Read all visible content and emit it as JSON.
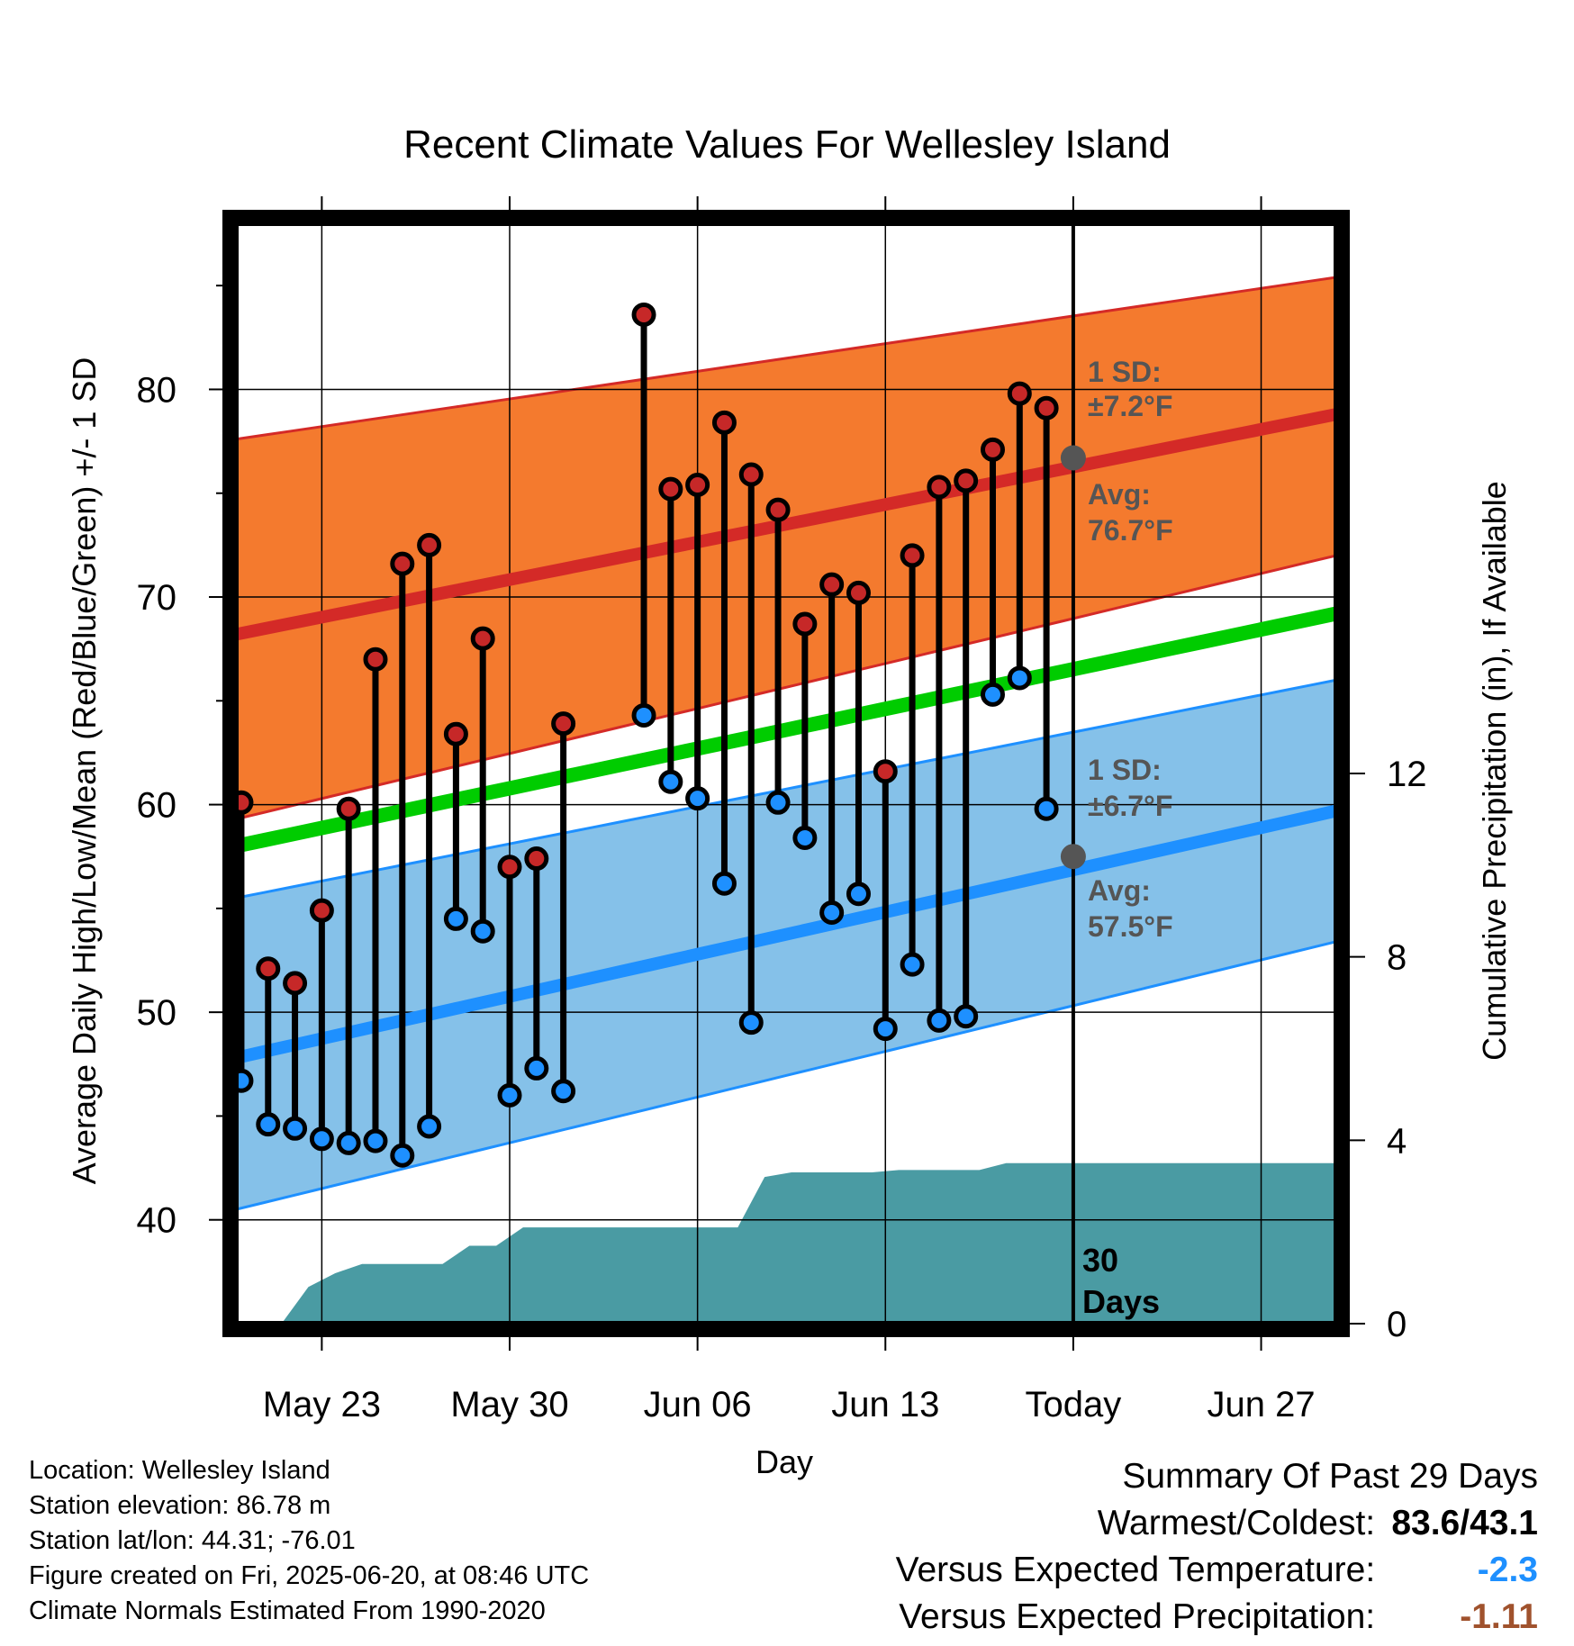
{
  "chart_data": {
    "type": "line",
    "title": "Recent Climate Values For Wellesley Island",
    "xlabel": "Day",
    "ylabel": "Average Daily High/Low/Mean (Red/Blue/Green) +/- 1 SD",
    "y2label": "Cumulative Precipitation (in), If Available",
    "ylim": [
      35,
      88
    ],
    "y2lim": [
      0,
      24
    ],
    "yticks": [
      40,
      50,
      60,
      70,
      80
    ],
    "y2ticks": [
      0,
      4,
      8,
      12
    ],
    "xticks": [
      {
        "day": 2,
        "label": "May 23"
      },
      {
        "day": 9,
        "label": "May 30"
      },
      {
        "day": 16,
        "label": "Jun 06"
      },
      {
        "day": 23,
        "label": "Jun 13"
      },
      {
        "day": 30,
        "label": "Today"
      },
      {
        "day": 37,
        "label": "Jun 27"
      }
    ],
    "xlim": [
      -1.2,
      39.8
    ],
    "today_index": 30,
    "grid": true,
    "normals": {
      "high_avg": [
        68.2,
        78.8
      ],
      "high_upper": [
        77.6,
        85.4
      ],
      "high_lower": [
        59.3,
        72.0
      ],
      "mean_avg": [
        58.0,
        69.2
      ],
      "low_avg": [
        47.8,
        59.7
      ],
      "low_upper": [
        55.5,
        66.0
      ],
      "low_lower": [
        40.5,
        53.4
      ]
    },
    "daily": {
      "x": [
        -1,
        0,
        1,
        2,
        3,
        4,
        5,
        6,
        7,
        8,
        9,
        10,
        11,
        12,
        14,
        15,
        16,
        17,
        18,
        19,
        20,
        21,
        22,
        23,
        24,
        25,
        26,
        27,
        28,
        29
      ],
      "high": [
        60.1,
        52.1,
        51.4,
        54.9,
        59.8,
        67.0,
        71.6,
        72.5,
        63.4,
        68.0,
        57.0,
        57.4,
        63.9,
        null,
        83.6,
        75.2,
        75.4,
        78.4,
        75.9,
        74.2,
        68.7,
        70.6,
        70.2,
        61.6,
        72.0,
        75.3,
        75.6,
        77.1,
        79.8,
        79.1
      ],
      "low": [
        46.7,
        44.6,
        44.4,
        43.9,
        43.7,
        43.8,
        43.1,
        44.5,
        54.5,
        53.9,
        46.0,
        47.3,
        46.2,
        null,
        64.3,
        61.1,
        60.3,
        56.2,
        49.5,
        60.1,
        58.4,
        54.8,
        55.7,
        49.2,
        52.3,
        49.6,
        49.8,
        65.3,
        66.1,
        59.8
      ]
    },
    "precip": {
      "x": [
        -1,
        0,
        1,
        2,
        3,
        4,
        5,
        6,
        7,
        8,
        9,
        10,
        11,
        12,
        13,
        14,
        15,
        16,
        17,
        18,
        19,
        20,
        21,
        22,
        23,
        24,
        25,
        26,
        27,
        28,
        29,
        30,
        31,
        32,
        33,
        34,
        35,
        36,
        37,
        38,
        39
      ],
      "y": [
        0,
        0,
        0,
        0.8,
        1.1,
        1.3,
        1.3,
        1.3,
        1.3,
        1.7,
        1.7,
        2.1,
        2.1,
        2.1,
        2.1,
        2.1,
        2.1,
        2.1,
        2.1,
        2.1,
        3.2,
        3.3,
        3.3,
        3.3,
        3.3,
        3.35,
        3.35,
        3.35,
        3.35,
        3.5,
        3.5,
        3.5,
        3.5,
        3.5,
        3.5,
        3.5,
        3.5,
        3.5,
        3.5,
        3.5,
        3.5
      ]
    },
    "annotations": {
      "high_sd_label": "1 SD:",
      "high_sd_value": "±7.2°F",
      "high_avg_label": "Avg:",
      "high_avg_value": "76.7°F",
      "low_sd_label": "1 SD:",
      "low_sd_value": "±6.7°F",
      "low_avg_label": "Avg:",
      "low_avg_value": "57.5°F",
      "days_number": "30",
      "days_word": "Days",
      "today_high_avg": 76.7,
      "today_low_avg": 57.5
    },
    "colors": {
      "high_band": "#f47a2e",
      "high_line": "#d42a27",
      "low_band": "#85c1e9",
      "low_line": "#1e90ff",
      "mean_line": "#00cc00",
      "precip": "#4a9ba3",
      "high_dot": "#c62828",
      "low_dot": "#1e90ff"
    }
  },
  "footer": {
    "location": "Location: Wellesley Island",
    "elevation": "Station elevation: 86.78 m",
    "latlon": "Station lat/lon: 44.31; -76.01",
    "created": "Figure created on Fri, 2025-06-20, at 08:46 UTC",
    "normals": "Climate Normals Estimated From 1990-2020"
  },
  "summary": {
    "heading": "Summary Of Past 29 Days",
    "warmest_label": "Warmest/Coldest:",
    "warmest_value": "83.6/43.1",
    "temp_label": "Versus Expected Temperature:",
    "temp_value": "-2.3",
    "precip_label": "Versus Expected Precipitation:",
    "precip_value": "-1.11"
  }
}
